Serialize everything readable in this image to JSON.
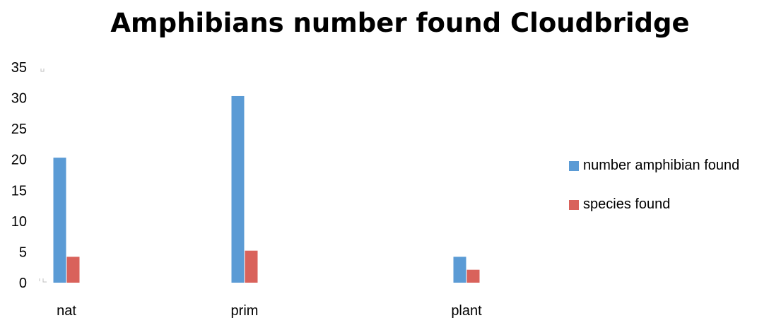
{
  "chart_data": {
    "type": "bar",
    "title": "Amphibians number found Cloudbridge",
    "xlabel": "",
    "ylabel": "",
    "categories": [
      "nat",
      "prim",
      "plant"
    ],
    "series": [
      {
        "name": "number amphibian found",
        "values": [
          20.3,
          30.3,
          4.2
        ]
      },
      {
        "name": "species found",
        "values": [
          4.2,
          5.2,
          2.1
        ]
      }
    ],
    "ylim": [
      0,
      35
    ],
    "yticks": [
      "0",
      "5",
      "10",
      "15",
      "20",
      "25",
      "30",
      "35"
    ],
    "grid": false,
    "legend": "right",
    "colors": [
      "#5b9bd5",
      "#d9625b"
    ]
  }
}
